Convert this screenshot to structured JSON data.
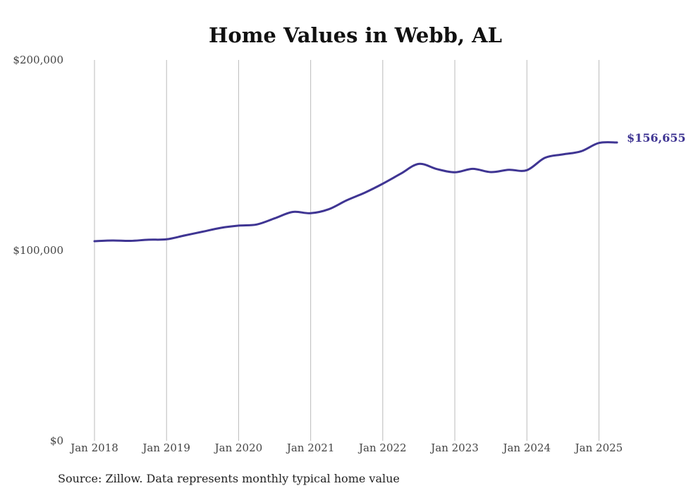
{
  "chart_data": {
    "type": "line",
    "title": "Home Values in Webb, AL",
    "source": "Source: Zillow. Data represents monthly typical home value",
    "y_ticks": [
      "$0",
      "$100,000",
      "$200,000"
    ],
    "y_tick_values": [
      0,
      100000,
      200000
    ],
    "ylim": [
      0,
      200000
    ],
    "x_ticks": [
      "Jan 2018",
      "Jan 2019",
      "Jan 2020",
      "Jan 2021",
      "Jan 2022",
      "Jan 2023",
      "Jan 2024",
      "Jan 2025"
    ],
    "x_tick_values": [
      "2018-01",
      "2019-01",
      "2020-01",
      "2021-01",
      "2022-01",
      "2023-01",
      "2024-01",
      "2025-01"
    ],
    "xlim": [
      "2018-01",
      "2025-04"
    ],
    "grid": "vertical",
    "line_color": "#3f3593",
    "end_label": "$156,655",
    "series": [
      {
        "x": [
          "2018-01",
          "2018-04",
          "2018-07",
          "2018-10",
          "2019-01",
          "2019-04",
          "2019-07",
          "2019-10",
          "2020-01",
          "2020-04",
          "2020-07",
          "2020-10",
          "2021-01",
          "2021-04",
          "2021-07",
          "2021-10",
          "2022-01",
          "2022-04",
          "2022-07",
          "2022-10",
          "2023-01",
          "2023-04",
          "2023-07",
          "2023-10",
          "2024-01",
          "2024-04",
          "2024-07",
          "2024-10",
          "2025-01",
          "2025-04"
        ],
        "values": [
          104800,
          105200,
          105000,
          105600,
          105800,
          107800,
          109800,
          111800,
          113000,
          113600,
          116800,
          120200,
          119500,
          121600,
          126300,
          130300,
          135000,
          140300,
          145400,
          142700,
          141000,
          142800,
          141100,
          142300,
          142100,
          148600,
          150400,
          152000,
          156400,
          156655
        ]
      }
    ]
  }
}
